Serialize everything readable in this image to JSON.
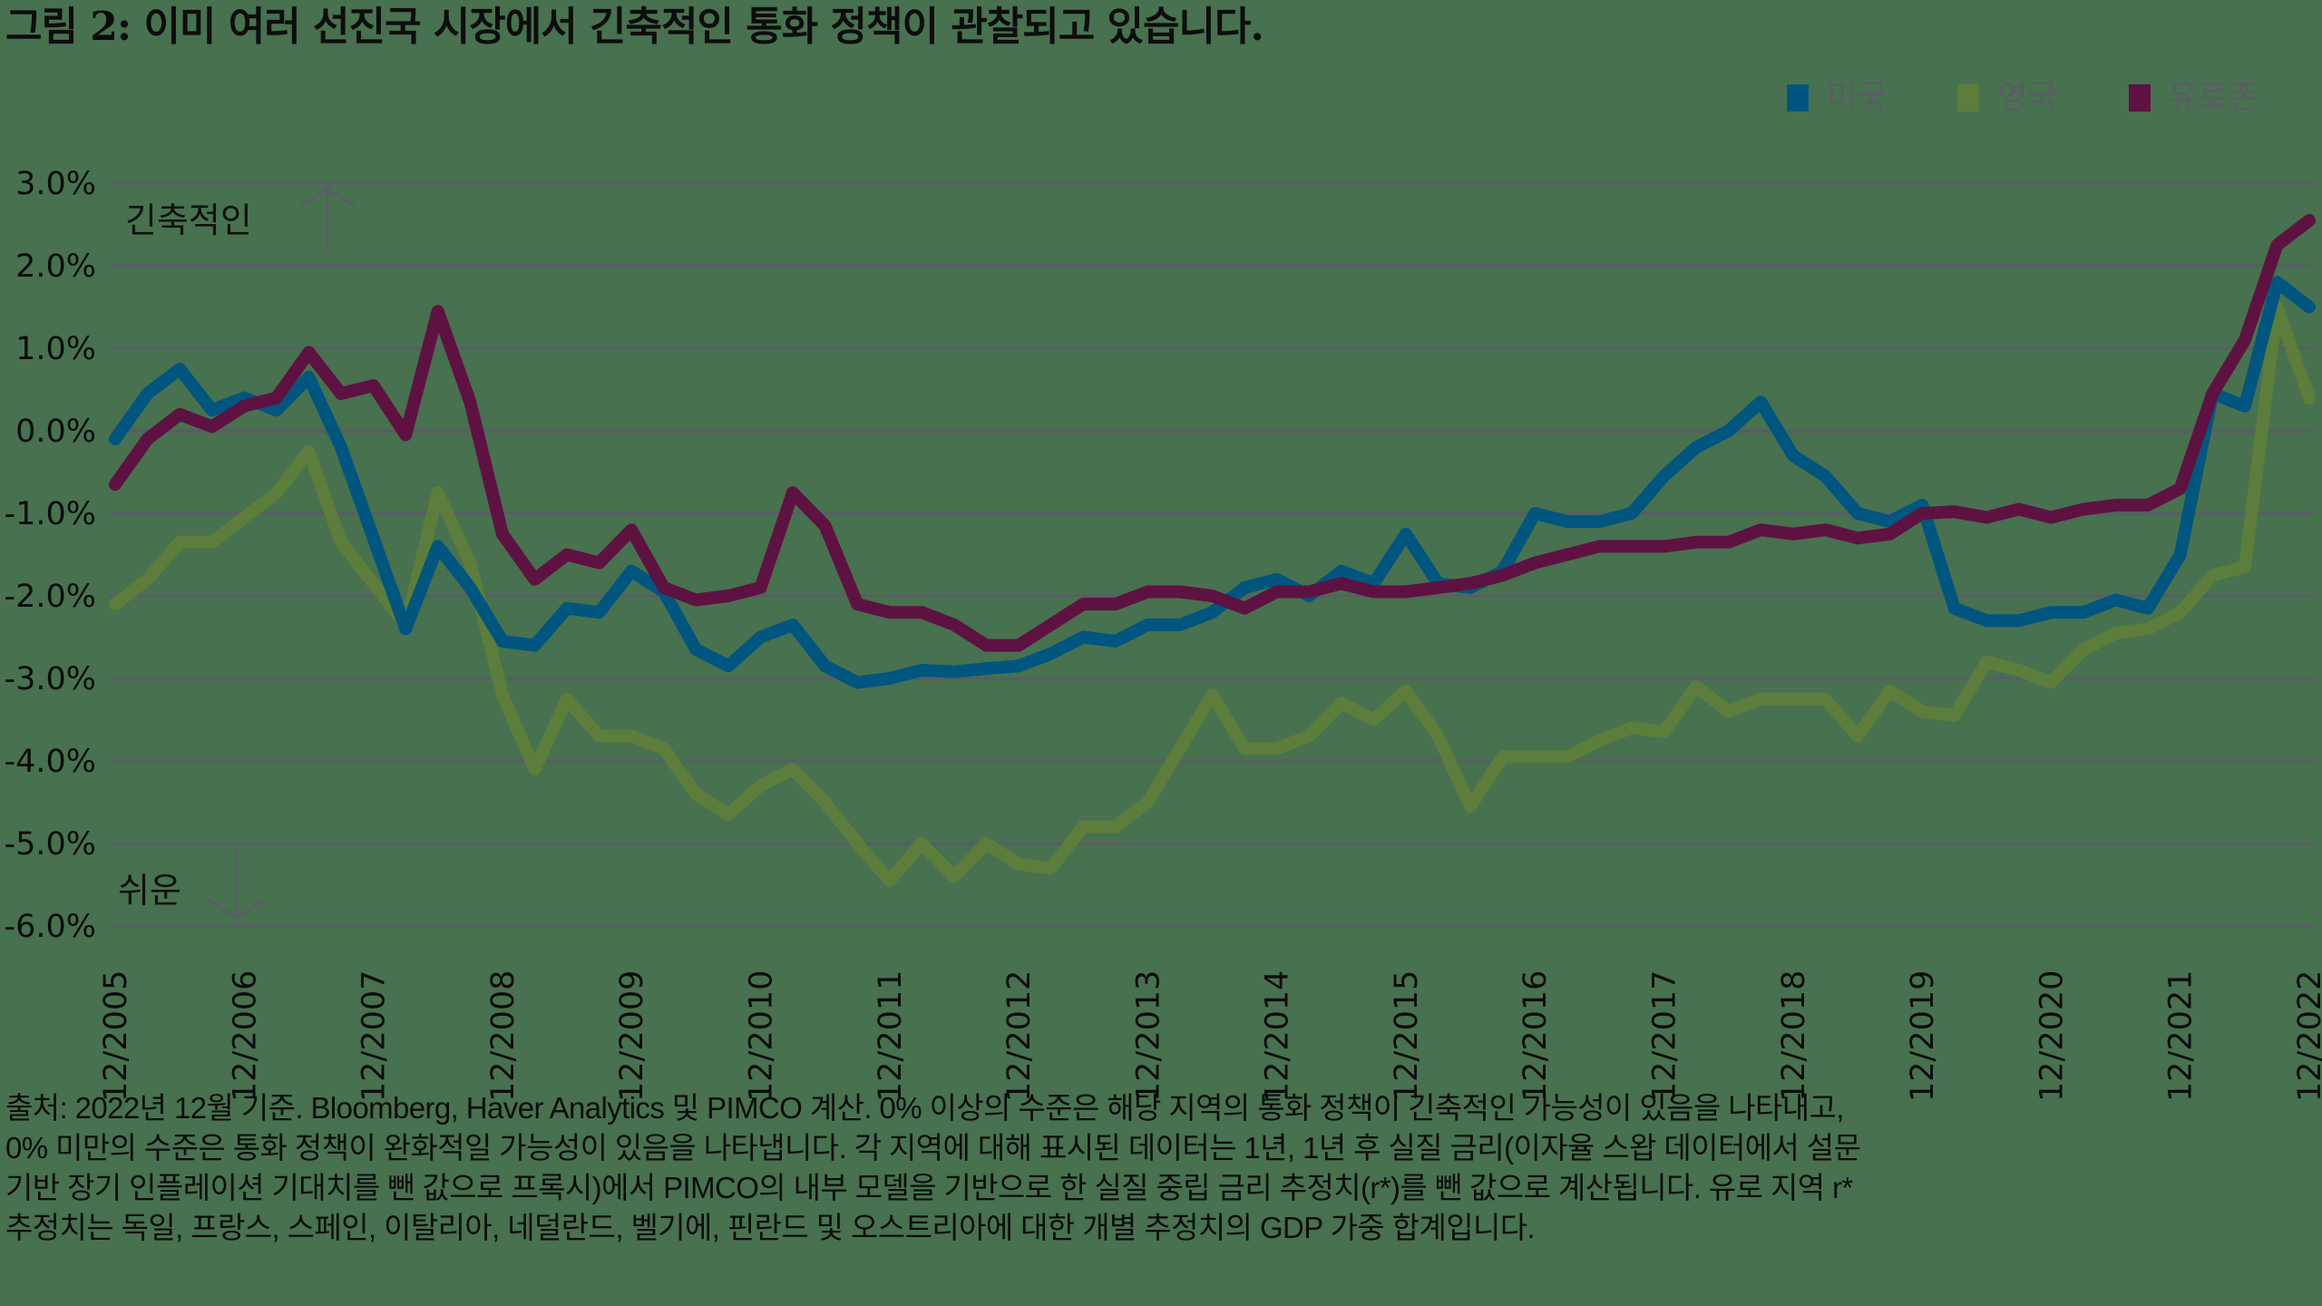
{
  "title": "그림 2: 이미 여러 선진국 시장에서 긴축적인 통화 정책이 관찰되고 있습니다.",
  "legend": [
    {
      "label": "미국",
      "color": "#00567f"
    },
    {
      "label": "영국",
      "color": "#5c7d3b"
    },
    {
      "label": "유로존",
      "color": "#5e1242"
    }
  ],
  "annotations": {
    "tight": "긴축적인",
    "easy": "쉬운"
  },
  "footnote": [
    "출처: 2022년 12월 기준. Bloomberg, Haver Analytics 및 PIMCO 계산. 0% 이상의 수준은 해당 지역의 통화 정책이 긴축적인 가능성이 있음을 나타내고,",
    "0% 미만의 수준은 통화 정책이 완화적일 가능성이 있음을 나타냅니다. 각 지역에 대해 표시된 데이터는 1년, 1년 후 실질 금리(이자율 스왑 데이터에서 설문",
    "기반 장기 인플레이션 기대치를 뺀 값으로 프록시)에서 PIMCO의 내부 모델을 기반으로 한 실질 중립 금리 추정치(r*)를 뺀 값으로 계산됩니다. 유로 지역 r*",
    "추정치는 독일, 프랑스, 스페인, 이탈리아, 네덜란드, 벨기에, 핀란드 및 오스트리아에 대한 개별 추정치의 GDP 가중 합계입니다."
  ],
  "colors": {
    "background": "#48714f",
    "grid": "#595d66",
    "arrow": "#595d66"
  },
  "chart_data": {
    "type": "line",
    "title": "그림 2: 이미 여러 선진국 시장에서 긴축적인 통화 정책이 관찰되고 있습니다.",
    "xlabel": "",
    "ylabel": "",
    "ylim": [
      -6.0,
      3.0
    ],
    "yticks": [
      "3.0%",
      "2.0%",
      "1.0%",
      "0.0%",
      "-1.0%",
      "-2.0%",
      "-3.0%",
      "-4.0%",
      "-5.0%",
      "-6.0%"
    ],
    "xtick_labels": [
      "12/2005",
      "12/2006",
      "12/2007",
      "12/2008",
      "12/2009",
      "12/2010",
      "12/2011",
      "12/2012",
      "12/2013",
      "12/2014",
      "12/2015",
      "12/2016",
      "12/2017",
      "12/2018",
      "12/2019",
      "12/2020",
      "12/2021",
      "12/2022"
    ],
    "grid": true,
    "legend_position": "top-right",
    "x_frequency": "quarterly, 12/2005 to 12/2022",
    "series": [
      {
        "name": "미국",
        "color": "#00567f",
        "values": [
          -0.1,
          0.45,
          0.75,
          0.25,
          0.4,
          0.25,
          0.65,
          -0.2,
          -1.3,
          -2.4,
          -1.4,
          -1.9,
          -2.55,
          -2.6,
          -2.15,
          -2.2,
          -1.7,
          -1.95,
          -2.65,
          -2.85,
          -2.5,
          -2.35,
          -2.85,
          -3.05,
          -3.0,
          -2.9,
          -2.92,
          -2.88,
          -2.85,
          -2.7,
          -2.5,
          -2.55,
          -2.35,
          -2.35,
          -2.2,
          -1.9,
          -1.8,
          -2.0,
          -1.7,
          -1.85,
          -1.25,
          -1.85,
          -1.9,
          -1.7,
          -1.0,
          -1.1,
          -1.1,
          -1.0,
          -0.55,
          -0.2,
          0.0,
          0.35,
          -0.3,
          -0.55,
          -1.0,
          -1.1,
          -0.9,
          -2.15,
          -2.3,
          -2.3,
          -2.2,
          -2.2,
          -2.05,
          -2.15,
          -1.5,
          0.45,
          0.3,
          1.8,
          1.5
        ]
      },
      {
        "name": "영국",
        "color": "#5c7d3b",
        "values": [
          -2.1,
          -1.8,
          -1.35,
          -1.35,
          -1.05,
          -0.75,
          -0.25,
          -1.35,
          -1.85,
          -2.35,
          -0.75,
          -1.6,
          -3.2,
          -4.1,
          -3.25,
          -3.7,
          -3.7,
          -3.85,
          -4.4,
          -4.65,
          -4.3,
          -4.1,
          -4.5,
          -5.0,
          -5.45,
          -5.0,
          -5.4,
          -5.0,
          -5.25,
          -5.3,
          -4.8,
          -4.8,
          -4.5,
          -3.85,
          -3.2,
          -3.85,
          -3.85,
          -3.7,
          -3.3,
          -3.5,
          -3.15,
          -3.7,
          -4.55,
          -3.95,
          -3.95,
          -3.95,
          -3.75,
          -3.6,
          -3.65,
          -3.1,
          -3.4,
          -3.25,
          -3.25,
          -3.25,
          -3.7,
          -3.15,
          -3.4,
          -3.45,
          -2.8,
          -2.9,
          -3.05,
          -2.65,
          -2.45,
          -2.4,
          -2.2,
          -1.75,
          -1.65,
          1.5,
          0.4
        ]
      },
      {
        "name": "유로존",
        "color": "#5e1242",
        "values": [
          -0.65,
          -0.1,
          0.2,
          0.05,
          0.3,
          0.4,
          0.95,
          0.45,
          0.55,
          -0.05,
          1.45,
          0.35,
          -1.25,
          -1.8,
          -1.5,
          -1.6,
          -1.2,
          -1.9,
          -2.05,
          -2.0,
          -1.9,
          -0.75,
          -1.15,
          -2.1,
          -2.2,
          -2.2,
          -2.35,
          -2.6,
          -2.6,
          -2.35,
          -2.1,
          -2.1,
          -1.95,
          -1.95,
          -2.0,
          -2.15,
          -1.95,
          -1.95,
          -1.85,
          -1.95,
          -1.95,
          -1.9,
          -1.85,
          -1.75,
          -1.6,
          -1.5,
          -1.4,
          -1.4,
          -1.4,
          -1.35,
          -1.35,
          -1.2,
          -1.25,
          -1.2,
          -1.3,
          -1.25,
          -1.0,
          -0.98,
          -1.05,
          -0.95,
          -1.05,
          -0.95,
          -0.9,
          -0.9,
          -0.7,
          0.45,
          1.1,
          2.25,
          2.55
        ]
      }
    ]
  }
}
